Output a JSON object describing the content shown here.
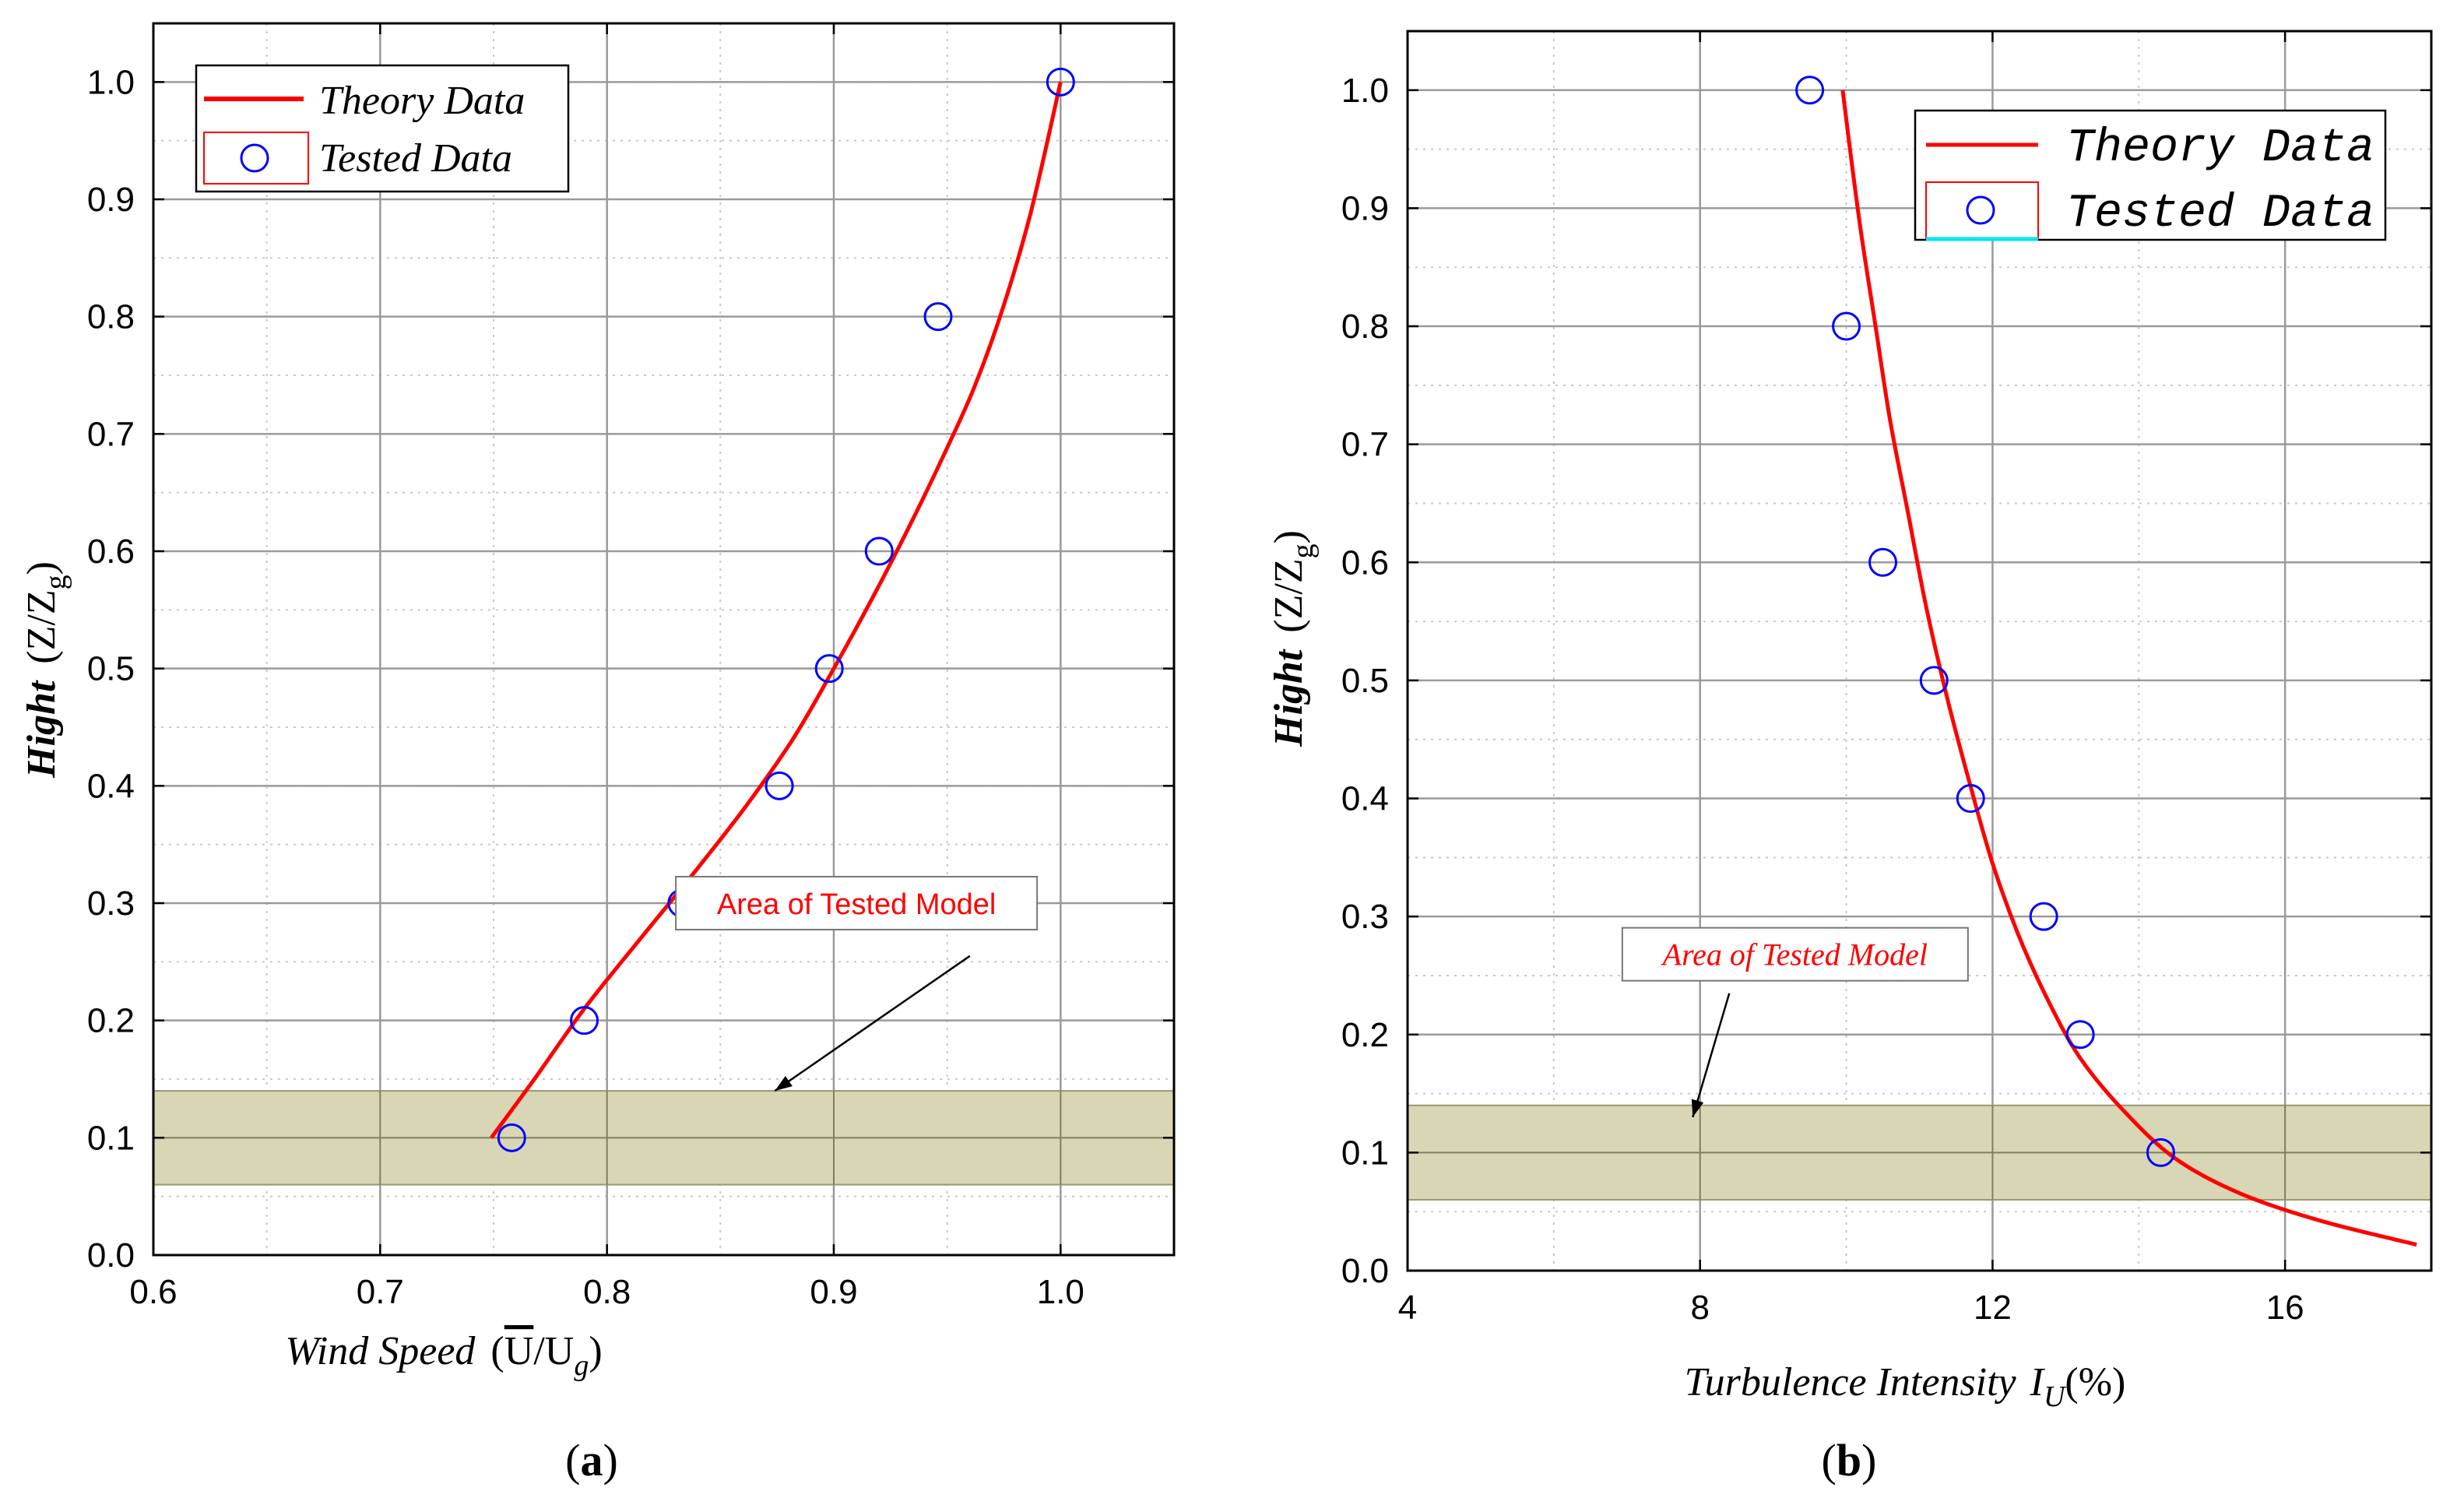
{
  "colors": {
    "theory_line": "#ff0000",
    "tested_marker": "#0000ff",
    "band_fill": "#d8d6b4",
    "band_stroke": "#9a9870",
    "grid_major": "#9a9a9a",
    "grid_minor": "#c8c8c8",
    "annotation": "#ff0000"
  },
  "chart_data": [
    {
      "panel_label": "a",
      "type": "line",
      "xlabel": "Wind Speed",
      "xlabel_unit_over": "U",
      "xlabel_unit_rest": "/U",
      "xlabel_unit_sub": "g",
      "ylabel": "Hight",
      "ylabel_unit": "(Z/Z",
      "ylabel_unit_sub": "g",
      "ylabel_unit_close": ")",
      "xlim": [
        0.6,
        1.05
      ],
      "ylim": [
        0.0,
        1.05
      ],
      "x_ticks": [
        0.6,
        0.7,
        0.8,
        0.9,
        1.0
      ],
      "x_tick_labels": [
        "0.6",
        "0.7",
        "0.8",
        "0.9",
        "1.0"
      ],
      "y_ticks": [
        0.0,
        0.1,
        0.2,
        0.3,
        0.4,
        0.5,
        0.6,
        0.7,
        0.8,
        0.9,
        1.0
      ],
      "y_tick_labels": [
        "0.0",
        "0.1",
        "0.2",
        "0.3",
        "0.4",
        "0.5",
        "0.6",
        "0.7",
        "0.8",
        "0.9",
        "1.0"
      ],
      "x_minor_step": 0.05,
      "y_minor_step": 0.05,
      "legend": {
        "position": "top-left",
        "theory": "Theory Data",
        "tested": "Tested Data"
      },
      "band": {
        "y_from": 0.06,
        "y_to": 0.14
      },
      "annotation": {
        "text": "Area of Tested Model",
        "arrow_tail": [
          0.96,
          0.255
        ],
        "arrow_head": [
          0.874,
          0.14
        ],
        "label_at": [
          0.91,
          0.3
        ]
      },
      "series": [
        {
          "name": "Theory Data",
          "kind": "curve",
          "x": [
            0.749,
            0.768,
            0.79,
            0.814,
            0.838,
            0.861,
            0.882,
            0.9,
            0.917,
            0.933,
            0.948,
            0.962,
            0.975,
            0.987,
            1.0
          ],
          "y": [
            0.1,
            0.15,
            0.21,
            0.268,
            0.325,
            0.382,
            0.44,
            0.5,
            0.56,
            0.62,
            0.68,
            0.74,
            0.81,
            0.89,
            1.0
          ]
        },
        {
          "name": "Tested Data",
          "kind": "markers",
          "x": [
            0.758,
            0.79,
            0.833,
            0.876,
            0.898,
            0.92,
            0.946,
            1.0
          ],
          "y": [
            0.1,
            0.2,
            0.3,
            0.4,
            0.5,
            0.6,
            0.8,
            1.0
          ]
        }
      ]
    },
    {
      "panel_label": "b",
      "type": "line",
      "xlabel": "Turbulence Intensity",
      "xlabel_sym": "I",
      "xlabel_sym_sub": "U",
      "xlabel_unit": "(%)",
      "ylabel": "Hight",
      "ylabel_unit": "(Z/Z",
      "ylabel_unit_sub": "g",
      "ylabel_unit_close": ")",
      "xlim": [
        4,
        18
      ],
      "ylim": [
        0.0,
        1.05
      ],
      "x_ticks": [
        4,
        8,
        12,
        16
      ],
      "x_tick_labels": [
        "4",
        "8",
        "12",
        "16"
      ],
      "y_ticks": [
        0.0,
        0.1,
        0.2,
        0.3,
        0.4,
        0.5,
        0.6,
        0.7,
        0.8,
        0.9,
        1.0
      ],
      "y_tick_labels": [
        "0.0",
        "0.1",
        "0.2",
        "0.3",
        "0.4",
        "0.5",
        "0.6",
        "0.7",
        "0.8",
        "0.9",
        "1.0"
      ],
      "x_minor_step": 2,
      "y_minor_step": 0.05,
      "legend": {
        "position": "top-right",
        "theory": "Theory Data",
        "tested": "Tested Data"
      },
      "band": {
        "y_from": 0.06,
        "y_to": 0.14
      },
      "annotation": {
        "text": "Area of Tested Model",
        "arrow_tail": [
          8.4,
          0.235
        ],
        "arrow_head": [
          7.9,
          0.13
        ],
        "label_at": [
          9.3,
          0.268
        ]
      },
      "series": [
        {
          "name": "Theory Data",
          "kind": "curve",
          "x": [
            9.95,
            10.05,
            10.2,
            10.4,
            10.6,
            10.85,
            11.1,
            11.4,
            11.7,
            12.0,
            12.35,
            12.75,
            13.2,
            13.8,
            14.5,
            15.4,
            16.5,
            17.8
          ],
          "y": [
            1.0,
            0.95,
            0.88,
            0.8,
            0.72,
            0.64,
            0.56,
            0.48,
            0.41,
            0.345,
            0.285,
            0.23,
            0.18,
            0.135,
            0.095,
            0.065,
            0.042,
            0.022
          ]
        },
        {
          "name": "Tested Data",
          "kind": "markers",
          "x": [
            9.5,
            10.0,
            10.5,
            11.2,
            11.7,
            12.7,
            13.2,
            14.3
          ],
          "y": [
            1.0,
            0.8,
            0.6,
            0.5,
            0.4,
            0.3,
            0.2,
            0.1
          ]
        }
      ]
    }
  ]
}
